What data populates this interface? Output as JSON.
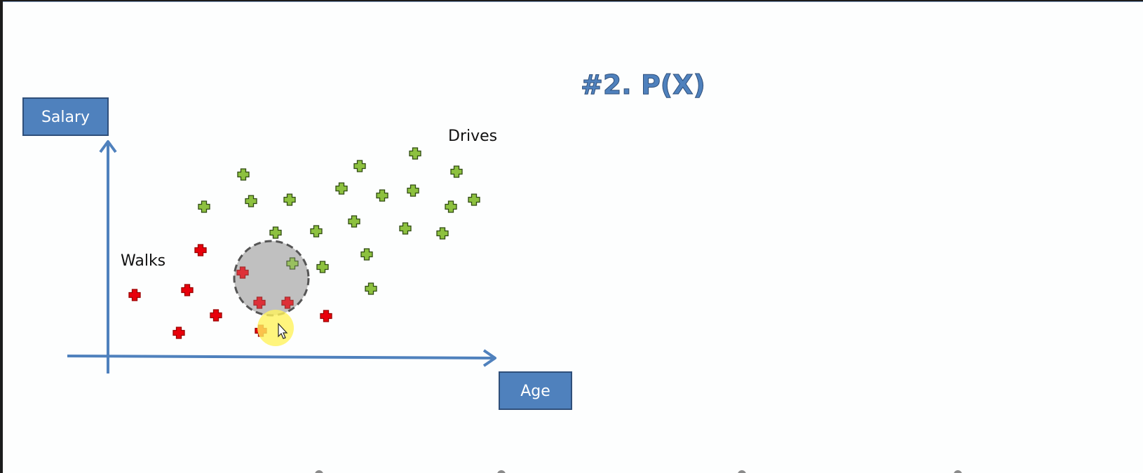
{
  "slide": {
    "title": "#2. P(X)"
  },
  "diagram": {
    "y_axis_label": "Salary",
    "x_axis_label": "Age",
    "region_labels": {
      "walks": "Walks",
      "drives": "Drives"
    },
    "walks_marker_color": "#e8000b",
    "drives_marker_color": "#8dc13f",
    "circle_fill": "#bfbfbf",
    "circle_stroke": "#555555",
    "highlight_color": "#fff35c",
    "axis_color": "#4f81bd"
  }
}
